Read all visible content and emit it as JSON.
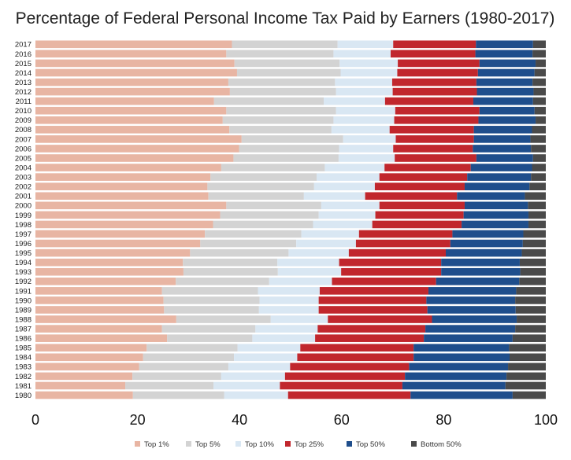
{
  "chart_data": {
    "type": "bar",
    "orientation": "horizontal",
    "stacked": true,
    "title": "Percentage of Federal Personal Income Tax Paid by Earners (1980-2017)",
    "xlabel": "",
    "ylabel": "",
    "xlim": [
      0,
      100
    ],
    "xticks": [
      "0",
      "20",
      "40",
      "60",
      "80",
      "100"
    ],
    "categories": [
      "2017",
      "2016",
      "2015",
      "2014",
      "2013",
      "2012",
      "2011",
      "2010",
      "2009",
      "2008",
      "2007",
      "2006",
      "2005",
      "2004",
      "2003",
      "2002",
      "2001",
      "2000",
      "1999",
      "1998",
      "1997",
      "1996",
      "1995",
      "1994",
      "1993",
      "1992",
      "1991",
      "1990",
      "1989",
      "1988",
      "1987",
      "1986",
      "1985",
      "1984",
      "1983",
      "1982",
      "1981",
      "1980"
    ],
    "series": [
      {
        "name": "Top 1%",
        "color": "#e8b5a3",
        "values": [
          38.5,
          37.4,
          39.0,
          39.5,
          37.8,
          38.1,
          35.0,
          37.4,
          36.7,
          38.0,
          40.4,
          39.9,
          38.8,
          36.4,
          34.3,
          33.7,
          33.9,
          37.4,
          36.2,
          34.8,
          33.2,
          32.3,
          30.3,
          28.9,
          29.0,
          27.5,
          24.8,
          25.1,
          25.2,
          27.6,
          24.8,
          25.8,
          21.8,
          21.1,
          20.3,
          19.0,
          17.6,
          19.1
        ]
      },
      {
        "name": "Top 5%",
        "color": "#d3d3d3",
        "values": [
          20.7,
          21.0,
          20.6,
          20.3,
          20.9,
          20.8,
          21.5,
          21.5,
          21.7,
          20.0,
          19.9,
          19.6,
          20.6,
          20.3,
          20.8,
          20.9,
          18.7,
          18.6,
          19.3,
          19.6,
          18.9,
          18.8,
          19.3,
          18.5,
          18.5,
          18.3,
          18.8,
          18.8,
          18.6,
          18.5,
          18.3,
          16.7,
          17.8,
          17.8,
          17.5,
          17.4,
          17.3,
          17.9
        ]
      },
      {
        "name": "Top 10%",
        "color": "#d9e7f3",
        "values": [
          10.9,
          11.2,
          11.4,
          11.1,
          11.2,
          11.1,
          12.0,
          11.6,
          11.9,
          11.4,
          10.3,
          10.6,
          11.0,
          11.7,
          12.3,
          11.9,
          12.0,
          11.4,
          11.1,
          11.6,
          11.3,
          11.7,
          11.8,
          12.1,
          12.4,
          12.3,
          12.1,
          11.6,
          11.7,
          11.2,
          12.2,
          12.3,
          12.3,
          12.4,
          12.1,
          12.5,
          13.0,
          12.5
        ]
      },
      {
        "name": "Top 25%",
        "color": "#c1272d",
        "values": [
          16.2,
          16.6,
          16.0,
          15.8,
          16.5,
          16.5,
          17.3,
          16.5,
          16.5,
          16.5,
          15.3,
          15.6,
          16.0,
          16.9,
          17.2,
          17.6,
          18.0,
          16.7,
          17.3,
          17.5,
          18.3,
          18.5,
          19.0,
          20.0,
          19.6,
          20.4,
          21.3,
          21.1,
          21.3,
          20.4,
          21.1,
          21.3,
          22.2,
          22.8,
          23.3,
          23.5,
          24.0,
          24.0
        ]
      },
      {
        "name": "Top 50%",
        "color": "#1f4e8c",
        "values": [
          11.2,
          11.2,
          11.0,
          11.1,
          11.0,
          11.1,
          11.7,
          10.8,
          11.2,
          11.4,
          11.1,
          11.4,
          11.1,
          12.0,
          12.5,
          12.7,
          13.3,
          12.4,
          12.7,
          13.1,
          13.9,
          14.2,
          14.9,
          15.4,
          15.5,
          16.3,
          17.2,
          17.4,
          17.3,
          16.6,
          17.6,
          17.4,
          18.7,
          18.8,
          19.4,
          19.9,
          20.2,
          20.0
        ]
      },
      {
        "name": "Bottom 50%",
        "color": "#4a4a4a",
        "values": [
          2.9,
          2.8,
          3.0,
          3.2,
          2.8,
          2.9,
          2.9,
          2.4,
          2.9,
          2.7,
          3.0,
          3.1,
          3.1,
          3.3,
          3.5,
          3.6,
          4.3,
          3.9,
          4.0,
          4.2,
          4.3,
          4.5,
          4.6,
          4.8,
          4.8,
          4.7,
          5.7,
          5.9,
          5.6,
          5.7,
          6.0,
          6.5,
          7.2,
          7.0,
          7.4,
          7.7,
          7.9,
          6.5
        ]
      }
    ]
  }
}
